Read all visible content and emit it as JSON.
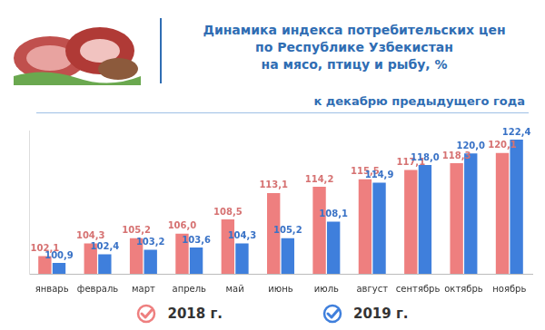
{
  "chart_data": {
    "type": "bar",
    "title": [
      "Динамика индекса потребительских цен",
      "по Республике Узбекистан",
      "на мясо, птицу и рыбу, %"
    ],
    "subtitle": "к декабрю предыдущего года",
    "categories": [
      "январь",
      "февраль",
      "март",
      "апрель",
      "май",
      "июнь",
      "июль",
      "август",
      "сентябрь",
      "октябрь",
      "ноябрь"
    ],
    "series": [
      {
        "name": "2018 г.",
        "color": "#ee7f7f",
        "values": [
          102.1,
          104.3,
          105.2,
          106.0,
          108.5,
          113.1,
          114.2,
          115.5,
          117.1,
          118.3,
          120.1
        ],
        "value_labels": [
          "102,1",
          "104,3",
          "105,2",
          "106,0",
          "108,5",
          "113,1",
          "114,2",
          "115,5",
          "117,1",
          "118,3",
          "120,1"
        ]
      },
      {
        "name": "2019 г.",
        "color": "#3f7fdc",
        "values": [
          100.9,
          102.4,
          103.2,
          103.6,
          104.3,
          105.2,
          108.1,
          114.9,
          118.0,
          120.0,
          122.4
        ],
        "value_labels": [
          "100,9",
          "102,4",
          "103,2",
          "103,6",
          "104,3",
          "105,2",
          "108,1",
          "114,9",
          "118,0",
          "120,0",
          "122,4"
        ]
      }
    ],
    "ylim": [
      99,
      124
    ],
    "grid": false,
    "legend": "bottom",
    "data_labels": true,
    "tick_labels": "x"
  }
}
